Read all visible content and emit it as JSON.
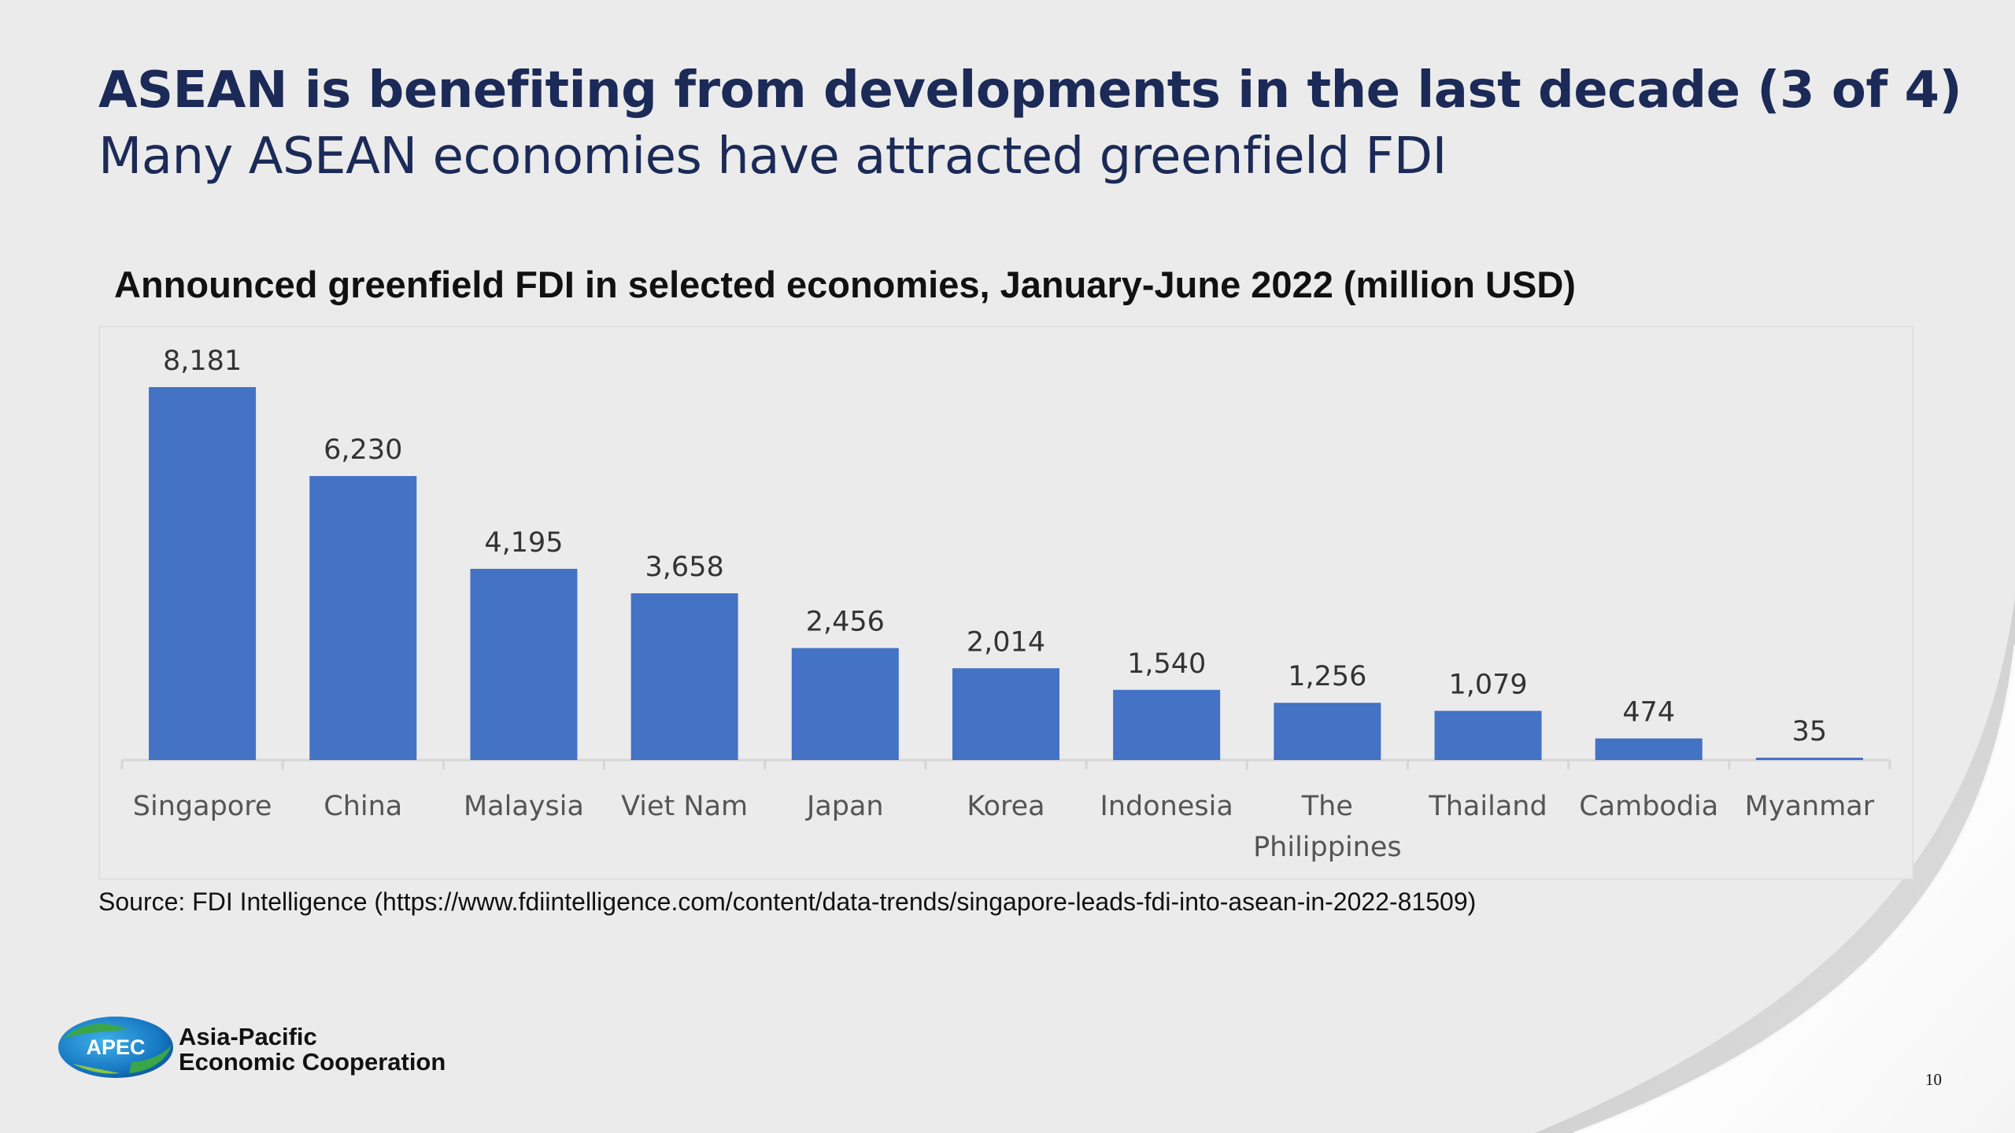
{
  "slide": {
    "title": "ASEAN is benefiting from developments in the last decade (3 of 4)",
    "subtitle": "Many ASEAN economies have attracted greenfield FDI",
    "source": "Source: FDI Intelligence (https://www.fdiintelligence.com/content/data-trends/singapore-leads-fdi-into-asean-in-2022-81509)",
    "page_number": "10"
  },
  "logo": {
    "mark_text": "APEC",
    "line1": "Asia-Pacific",
    "line2": "Economic Cooperation"
  },
  "colors": {
    "bar": "#4472c4",
    "title": "#1b2a57",
    "background": "#ebebeb"
  },
  "chart_data": {
    "type": "bar",
    "title": "Announced greenfield FDI in selected economies, January-June 2022 (million USD)",
    "categories": [
      [
        "Singapore"
      ],
      [
        "China"
      ],
      [
        "Malaysia"
      ],
      [
        "Viet Nam"
      ],
      [
        "Japan"
      ],
      [
        "Korea"
      ],
      [
        "Indonesia"
      ],
      [
        "The",
        "Philippines"
      ],
      [
        "Thailand"
      ],
      [
        "Cambodia"
      ],
      [
        "Myanmar"
      ]
    ],
    "values": [
      8181,
      6230,
      4195,
      3658,
      2456,
      2014,
      1540,
      1256,
      1079,
      474,
      35
    ],
    "value_labels": [
      "8,181",
      "6,230",
      "4,195",
      "3,658",
      "2,456",
      "2,014",
      "1,540",
      "1,256",
      "1,079",
      "474",
      "35"
    ],
    "ylim": [
      0,
      8181
    ],
    "grid": false,
    "legend": "none"
  }
}
